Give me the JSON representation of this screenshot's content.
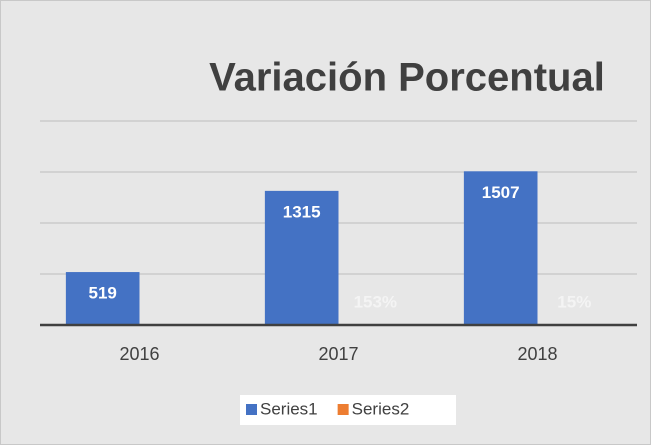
{
  "chart_data": {
    "type": "bar",
    "title": "Variación Porcentual",
    "categories": [
      "2016",
      "2017",
      "2018"
    ],
    "series": [
      {
        "name": "Series1",
        "color": "#4472c4",
        "values": [
          519,
          1315,
          1507
        ]
      },
      {
        "name": "Series2",
        "color": "#ed7d31",
        "values": [
          null,
          1.53,
          0.15
        ],
        "value_labels": [
          null,
          "153%",
          "15%"
        ]
      }
    ],
    "ylim": [
      0,
      2000
    ],
    "yticks": [
      0,
      500,
      1000,
      1500,
      2000
    ],
    "grid": true,
    "legend": "bottom"
  }
}
